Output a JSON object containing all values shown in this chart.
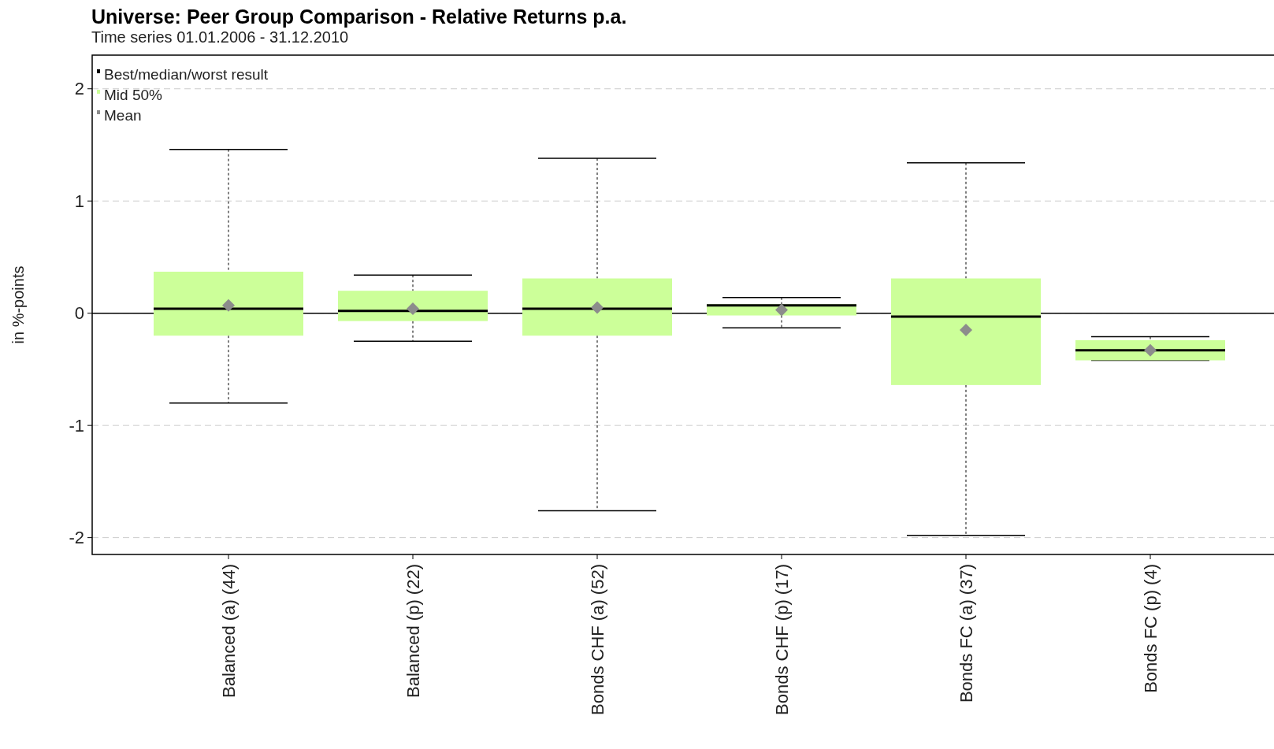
{
  "chart_data": {
    "type": "box",
    "title": "Universe: Peer Group Comparison - Relative Returns p.a.",
    "subtitle": "Time series 01.01.2006 - 31.12.2010",
    "ylabel": "in %-points",
    "categories": [
      "Balanced (a) (44)",
      "Balanced (p) (22)",
      "Bonds CHF (a) (52)",
      "Bonds CHF (p) (17)",
      "Bonds FC (a) (37)",
      "Bonds FC (p) (4)"
    ],
    "series": [
      {
        "name": "Mid 50%",
        "color": "#ccff99",
        "boxes": [
          {
            "low": -0.8,
            "q1": -0.2,
            "median": 0.04,
            "q3": 0.37,
            "high": 1.46,
            "mean": 0.07
          },
          {
            "low": -0.25,
            "q1": -0.07,
            "median": 0.02,
            "q3": 0.2,
            "high": 0.34,
            "mean": 0.04
          },
          {
            "low": -1.76,
            "q1": -0.2,
            "median": 0.04,
            "q3": 0.31,
            "high": 1.38,
            "mean": 0.05
          },
          {
            "low": -0.13,
            "q1": -0.02,
            "median": 0.07,
            "q3": 0.08,
            "high": 0.14,
            "mean": 0.03
          },
          {
            "low": -1.98,
            "q1": -0.64,
            "median": -0.03,
            "q3": 0.31,
            "high": 1.34,
            "mean": -0.15
          },
          {
            "low": -0.42,
            "q1": -0.42,
            "median": -0.33,
            "q3": -0.24,
            "high": -0.21,
            "mean": -0.33
          }
        ]
      }
    ],
    "annotations": [
      "Best/median/worst result",
      "Mean"
    ],
    "ylim": [
      -2.15,
      2.3
    ],
    "yticks": [
      -2,
      -1,
      0,
      1,
      2
    ],
    "grid": "y",
    "legend": "top left",
    "ref_lines": [
      {
        "axis": "y",
        "value": 0,
        "color": "#000000",
        "line_style": "solid"
      }
    ]
  }
}
